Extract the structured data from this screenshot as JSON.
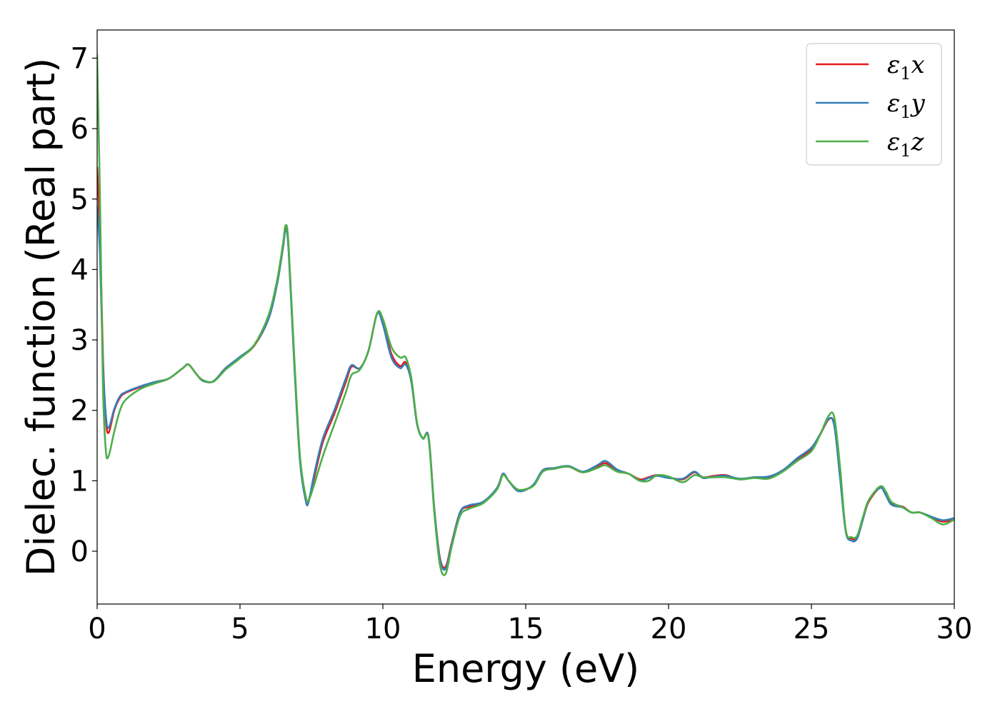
{
  "chart_data": {
    "type": "line",
    "title": "",
    "xlabel": "Energy (eV)",
    "ylabel": "Dielec. function (Real part)",
    "xlim": [
      0,
      30
    ],
    "ylim": [
      -0.75,
      7.4
    ],
    "x_ticks": [
      "0",
      "5",
      "10",
      "15",
      "20",
      "25",
      "30"
    ],
    "y_ticks": [
      "0",
      "1",
      "2",
      "3",
      "4",
      "5",
      "6",
      "7"
    ],
    "grid": false,
    "legend_position": "top-right",
    "series": [
      {
        "name": "ε₁x",
        "legend_base": "ε",
        "legend_sub": "1",
        "legend_var": "x",
        "color": "#e41a1c",
        "x": [
          0,
          0.1,
          0.2,
          0.3,
          0.4,
          0.6,
          0.8,
          1.0,
          1.5,
          2.0,
          2.5,
          3.0,
          3.2,
          3.5,
          3.7,
          4.0,
          4.2,
          4.5,
          5.0,
          5.5,
          6.0,
          6.3,
          6.5,
          6.6,
          6.7,
          6.9,
          7.1,
          7.3,
          7.4,
          7.6,
          7.9,
          8.3,
          8.7,
          8.9,
          9.2,
          9.5,
          9.8,
          10.0,
          10.3,
          10.6,
          10.8,
          11.0,
          11.2,
          11.4,
          11.6,
          11.8,
          12.0,
          12.2,
          12.4,
          12.7,
          13.0,
          13.5,
          14.0,
          14.2,
          14.4,
          14.7,
          15.0,
          15.3,
          15.6,
          16.0,
          16.5,
          17.0,
          17.5,
          17.8,
          18.2,
          18.6,
          19.0,
          19.3,
          19.6,
          20.0,
          20.5,
          20.9,
          21.2,
          21.6,
          22.0,
          22.5,
          23.0,
          23.5,
          24.0,
          24.5,
          25.0,
          25.3,
          25.6,
          25.8,
          26.0,
          26.2,
          26.4,
          26.6,
          26.8,
          27.0,
          27.4,
          27.6,
          27.8,
          28.2,
          28.5,
          28.8,
          29.2,
          29.6,
          30.0
        ],
        "y": [
          5.45,
          4.5,
          2.8,
          1.9,
          1.68,
          2.0,
          2.18,
          2.25,
          2.33,
          2.4,
          2.45,
          2.6,
          2.65,
          2.5,
          2.42,
          2.4,
          2.46,
          2.6,
          2.75,
          2.92,
          3.3,
          3.8,
          4.3,
          4.58,
          4.3,
          2.7,
          1.3,
          0.75,
          0.72,
          1.05,
          1.55,
          1.95,
          2.4,
          2.62,
          2.6,
          2.85,
          3.38,
          3.25,
          2.8,
          2.63,
          2.68,
          2.4,
          1.8,
          1.6,
          1.62,
          0.6,
          -0.1,
          -0.22,
          0.1,
          0.55,
          0.63,
          0.68,
          0.9,
          1.1,
          1.0,
          0.87,
          0.88,
          0.95,
          1.15,
          1.18,
          1.2,
          1.12,
          1.2,
          1.25,
          1.15,
          1.1,
          1.02,
          1.05,
          1.08,
          1.05,
          1.02,
          1.12,
          1.05,
          1.07,
          1.08,
          1.02,
          1.05,
          1.05,
          1.15,
          1.3,
          1.45,
          1.65,
          1.87,
          1.8,
          1.1,
          0.3,
          0.18,
          0.2,
          0.45,
          0.7,
          0.9,
          0.82,
          0.68,
          0.63,
          0.55,
          0.55,
          0.48,
          0.42,
          0.45
        ]
      },
      {
        "name": "ε₁y",
        "legend_base": "ε",
        "legend_sub": "1",
        "legend_var": "y",
        "color": "#377eb8",
        "x": [
          0,
          0.1,
          0.2,
          0.3,
          0.4,
          0.6,
          0.8,
          1.0,
          1.5,
          2.0,
          2.5,
          3.0,
          3.2,
          3.5,
          3.7,
          4.0,
          4.2,
          4.5,
          5.0,
          5.5,
          6.0,
          6.3,
          6.5,
          6.6,
          6.7,
          6.9,
          7.1,
          7.3,
          7.4,
          7.6,
          7.9,
          8.3,
          8.7,
          8.9,
          9.2,
          9.5,
          9.8,
          10.0,
          10.3,
          10.6,
          10.8,
          11.0,
          11.2,
          11.4,
          11.6,
          11.8,
          12.0,
          12.2,
          12.4,
          12.7,
          13.0,
          13.5,
          14.0,
          14.2,
          14.4,
          14.7,
          15.0,
          15.3,
          15.6,
          16.0,
          16.5,
          17.0,
          17.5,
          17.8,
          18.2,
          18.6,
          19.0,
          19.3,
          19.6,
          20.0,
          20.5,
          20.9,
          21.2,
          21.6,
          22.0,
          22.5,
          23.0,
          23.5,
          24.0,
          24.5,
          25.0,
          25.3,
          25.6,
          25.8,
          26.0,
          26.2,
          26.4,
          26.6,
          26.8,
          27.0,
          27.4,
          27.6,
          27.8,
          28.2,
          28.5,
          28.8,
          29.2,
          29.6,
          30.0
        ],
        "y": [
          4.9,
          4.2,
          2.7,
          1.95,
          1.75,
          2.02,
          2.2,
          2.26,
          2.34,
          2.4,
          2.45,
          2.6,
          2.65,
          2.5,
          2.42,
          2.4,
          2.46,
          2.6,
          2.76,
          2.93,
          3.3,
          3.8,
          4.3,
          4.56,
          4.28,
          2.65,
          1.28,
          0.72,
          0.7,
          1.1,
          1.6,
          2.0,
          2.45,
          2.64,
          2.6,
          2.85,
          3.37,
          3.22,
          2.75,
          2.6,
          2.65,
          2.4,
          1.8,
          1.6,
          1.62,
          0.6,
          -0.12,
          -0.25,
          0.08,
          0.55,
          0.65,
          0.7,
          0.9,
          1.1,
          1.0,
          0.86,
          0.87,
          0.96,
          1.15,
          1.18,
          1.21,
          1.13,
          1.22,
          1.28,
          1.16,
          1.1,
          1.0,
          1.04,
          1.07,
          1.04,
          1.03,
          1.13,
          1.04,
          1.06,
          1.07,
          1.03,
          1.05,
          1.06,
          1.15,
          1.32,
          1.47,
          1.66,
          1.88,
          1.78,
          1.05,
          0.28,
          0.15,
          0.18,
          0.45,
          0.72,
          0.9,
          0.8,
          0.66,
          0.62,
          0.55,
          0.55,
          0.49,
          0.44,
          0.47
        ]
      },
      {
        "name": "ε₁z",
        "legend_base": "ε",
        "legend_sub": "1",
        "legend_var": "z",
        "color": "#4daf4a",
        "x": [
          0,
          0.1,
          0.2,
          0.3,
          0.4,
          0.6,
          0.8,
          1.0,
          1.5,
          2.0,
          2.5,
          3.0,
          3.2,
          3.5,
          3.7,
          4.0,
          4.2,
          4.5,
          5.0,
          5.5,
          6.0,
          6.3,
          6.5,
          6.6,
          6.7,
          6.9,
          7.1,
          7.3,
          7.4,
          7.6,
          7.9,
          8.3,
          8.7,
          8.9,
          9.2,
          9.5,
          9.8,
          10.0,
          10.3,
          10.6,
          10.8,
          11.0,
          11.2,
          11.4,
          11.6,
          11.8,
          12.0,
          12.2,
          12.4,
          12.7,
          13.0,
          13.5,
          14.0,
          14.2,
          14.4,
          14.7,
          15.0,
          15.3,
          15.6,
          16.0,
          16.5,
          17.0,
          17.5,
          17.8,
          18.2,
          18.6,
          19.0,
          19.3,
          19.6,
          20.0,
          20.5,
          20.9,
          21.2,
          21.6,
          22.0,
          22.5,
          23.0,
          23.5,
          24.0,
          24.5,
          25.0,
          25.3,
          25.6,
          25.8,
          26.0,
          26.2,
          26.4,
          26.6,
          26.8,
          27.0,
          27.4,
          27.6,
          27.8,
          28.2,
          28.5,
          28.8,
          29.2,
          29.6,
          30.0
        ],
        "y": [
          7.05,
          5.0,
          2.4,
          1.45,
          1.35,
          1.7,
          2.0,
          2.15,
          2.3,
          2.38,
          2.45,
          2.6,
          2.65,
          2.5,
          2.43,
          2.4,
          2.45,
          2.58,
          2.74,
          2.93,
          3.35,
          3.85,
          4.35,
          4.63,
          4.35,
          2.75,
          1.35,
          0.78,
          0.72,
          0.95,
          1.35,
          1.8,
          2.25,
          2.5,
          2.58,
          2.85,
          3.38,
          3.3,
          2.9,
          2.75,
          2.75,
          2.45,
          1.82,
          1.6,
          1.6,
          0.55,
          -0.2,
          -0.32,
          0.05,
          0.5,
          0.6,
          0.68,
          0.88,
          1.08,
          1.0,
          0.88,
          0.88,
          0.94,
          1.13,
          1.17,
          1.2,
          1.12,
          1.18,
          1.22,
          1.13,
          1.1,
          1.0,
          1.0,
          1.08,
          1.06,
          0.98,
          1.08,
          1.05,
          1.05,
          1.05,
          1.02,
          1.04,
          1.03,
          1.13,
          1.28,
          1.42,
          1.65,
          1.92,
          1.9,
          1.2,
          0.3,
          0.2,
          0.22,
          0.48,
          0.72,
          0.92,
          0.85,
          0.7,
          0.62,
          0.55,
          0.55,
          0.47,
          0.38,
          0.45
        ]
      }
    ]
  }
}
